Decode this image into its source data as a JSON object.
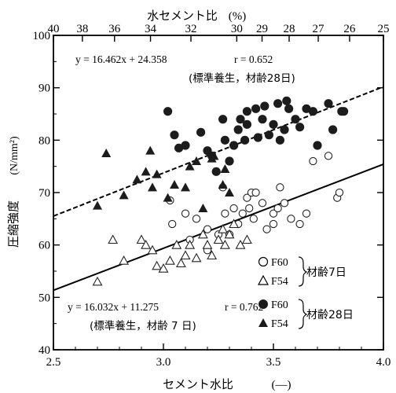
{
  "chart_data": {
    "type": "scatter",
    "x_axis": {
      "label": "セメント水比",
      "unit": "(—)",
      "range": [
        2.5,
        4.0
      ],
      "ticks": [
        "2.5",
        "3.0",
        "3.5",
        "4.0"
      ]
    },
    "y_axis": {
      "label": "圧縮強度",
      "unit": "(N/mm²)",
      "range": [
        40,
        100
      ],
      "ticks": [
        "40",
        "50",
        "60",
        "70",
        "80",
        "90",
        "100"
      ]
    },
    "top_axis": {
      "label": "水セメント比",
      "unit": "(%)",
      "ticks": [
        40,
        38,
        36,
        34,
        32,
        30,
        29,
        28,
        27,
        26,
        25
      ]
    },
    "fits": [
      {
        "equation": "y = 16.462x + 24.358",
        "r": "r = 0.652",
        "note": "(標準養生，材齢28日)",
        "slope": 16.462,
        "intercept": 24.358,
        "style": "dashed"
      },
      {
        "equation": "y = 16.032x + 11.275",
        "r": "r = 0.762",
        "note": "(標準養生，材齢 7 日)",
        "slope": 16.032,
        "intercept": 11.275,
        "style": "solid"
      }
    ],
    "legend": {
      "entries": [
        "F60",
        "F54",
        "F60",
        "F54"
      ],
      "groups": [
        "材齢7日",
        "材齢28日"
      ]
    },
    "series": [
      {
        "name": "F60 材齢7日",
        "marker": "open-circle",
        "points": [
          [
            3.03,
            68.5
          ],
          [
            3.04,
            64
          ],
          [
            3.1,
            66
          ],
          [
            3.12,
            61
          ],
          [
            3.15,
            65
          ],
          [
            3.2,
            59
          ],
          [
            3.2,
            63
          ],
          [
            3.25,
            62
          ],
          [
            3.27,
            71
          ],
          [
            3.28,
            66
          ],
          [
            3.3,
            62
          ],
          [
            3.32,
            67
          ],
          [
            3.34,
            64
          ],
          [
            3.36,
            66
          ],
          [
            3.38,
            69
          ],
          [
            3.39,
            67
          ],
          [
            3.4,
            70
          ],
          [
            3.41,
            65
          ],
          [
            3.42,
            70
          ],
          [
            3.45,
            68
          ],
          [
            3.47,
            63
          ],
          [
            3.5,
            64
          ],
          [
            3.5,
            66
          ],
          [
            3.52,
            67
          ],
          [
            3.53,
            71
          ],
          [
            3.55,
            68
          ],
          [
            3.58,
            65
          ],
          [
            3.62,
            64
          ],
          [
            3.65,
            66
          ],
          [
            3.68,
            76
          ],
          [
            3.75,
            77
          ],
          [
            3.79,
            69
          ],
          [
            3.8,
            70
          ]
        ]
      },
      {
        "name": "F54 材齢7日",
        "marker": "open-triangle",
        "points": [
          [
            2.7,
            53
          ],
          [
            2.77,
            61
          ],
          [
            2.82,
            57
          ],
          [
            2.9,
            61
          ],
          [
            2.92,
            60
          ],
          [
            2.95,
            59
          ],
          [
            2.97,
            56
          ],
          [
            3.0,
            55.5
          ],
          [
            3.03,
            57
          ],
          [
            3.06,
            60
          ],
          [
            3.08,
            56.5
          ],
          [
            3.1,
            58
          ],
          [
            3.12,
            60
          ],
          [
            3.15,
            57.5
          ],
          [
            3.18,
            62
          ],
          [
            3.2,
            60
          ],
          [
            3.22,
            58
          ],
          [
            3.25,
            61
          ],
          [
            3.27,
            63
          ],
          [
            3.28,
            60
          ],
          [
            3.3,
            62
          ],
          [
            3.32,
            64
          ],
          [
            3.35,
            60
          ],
          [
            3.38,
            61
          ]
        ]
      },
      {
        "name": "F60 材齢28日",
        "marker": "filled-circle",
        "points": [
          [
            3.02,
            85.5
          ],
          [
            3.05,
            81
          ],
          [
            3.07,
            78.5
          ],
          [
            3.1,
            79
          ],
          [
            3.17,
            81.5
          ],
          [
            3.2,
            78
          ],
          [
            3.22,
            77
          ],
          [
            3.24,
            74
          ],
          [
            3.27,
            84
          ],
          [
            3.28,
            80
          ],
          [
            3.3,
            76
          ],
          [
            3.32,
            79
          ],
          [
            3.34,
            82
          ],
          [
            3.35,
            84
          ],
          [
            3.37,
            80
          ],
          [
            3.38,
            85.5
          ],
          [
            3.38,
            83
          ],
          [
            3.42,
            86
          ],
          [
            3.43,
            80.5
          ],
          [
            3.45,
            84
          ],
          [
            3.46,
            86.5
          ],
          [
            3.48,
            81
          ],
          [
            3.5,
            83
          ],
          [
            3.52,
            87
          ],
          [
            3.53,
            80
          ],
          [
            3.55,
            82
          ],
          [
            3.56,
            87.5
          ],
          [
            3.57,
            86
          ],
          [
            3.6,
            84
          ],
          [
            3.62,
            82.5
          ],
          [
            3.65,
            86
          ],
          [
            3.68,
            85.5
          ],
          [
            3.7,
            79
          ],
          [
            3.75,
            87
          ],
          [
            3.77,
            82
          ],
          [
            3.81,
            85.5
          ],
          [
            3.82,
            85.5
          ]
        ]
      },
      {
        "name": "F54 材齢28日",
        "marker": "filled-triangle",
        "points": [
          [
            2.7,
            67.5
          ],
          [
            2.74,
            77.5
          ],
          [
            2.82,
            69.5
          ],
          [
            2.88,
            72.5
          ],
          [
            2.92,
            74
          ],
          [
            2.94,
            78
          ],
          [
            2.95,
            71
          ],
          [
            2.97,
            73.5
          ],
          [
            3.02,
            69
          ],
          [
            3.05,
            71.5
          ],
          [
            3.1,
            71
          ],
          [
            3.12,
            75
          ],
          [
            3.15,
            76
          ],
          [
            3.18,
            67
          ],
          [
            3.22,
            76.5
          ],
          [
            3.23,
            77
          ],
          [
            3.27,
            71.5
          ],
          [
            3.28,
            74.5
          ],
          [
            3.3,
            70
          ]
        ]
      }
    ]
  }
}
